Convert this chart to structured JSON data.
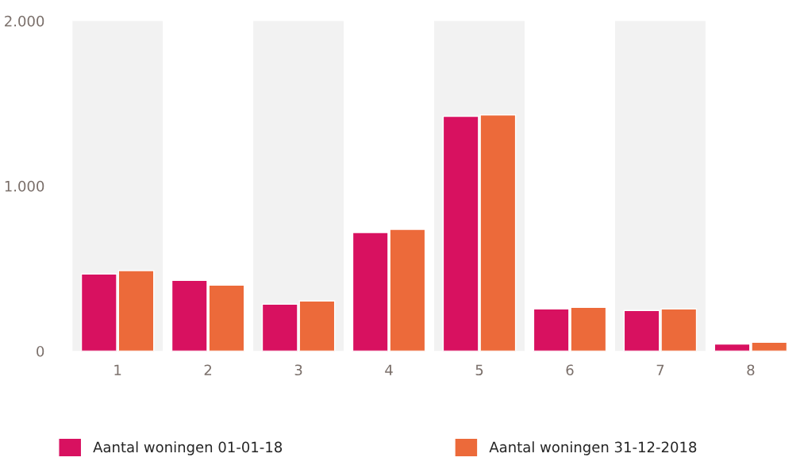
{
  "chart_data": {
    "type": "bar",
    "categories": [
      "1",
      "2",
      "3",
      "4",
      "5",
      "6",
      "7",
      "8"
    ],
    "series": [
      {
        "name": "Aantal woningen 01-01-18",
        "color": "#d81160",
        "values": [
          467,
          429,
          284,
          718,
          1422,
          255,
          246,
          43
        ]
      },
      {
        "name": "Aantal woningen 31-12-2018",
        "color": "#ec6a3a",
        "values": [
          487,
          400,
          304,
          737,
          1431,
          265,
          255,
          53
        ]
      }
    ],
    "ylim": [
      0,
      2000
    ],
    "yticks": [
      0,
      {
        "value": 1000,
        "label": "1.000"
      },
      {
        "value": 2000,
        "label": "2.000"
      }
    ],
    "bands": [
      {
        "axis": "x",
        "from": "1",
        "to": "1",
        "color": "#f2f2f2"
      },
      {
        "axis": "x",
        "from": "3",
        "to": "3",
        "color": "#f2f2f2"
      },
      {
        "axis": "x",
        "from": "5",
        "to": "5",
        "color": "#f2f2f2"
      },
      {
        "axis": "x",
        "from": "7",
        "to": "7",
        "color": "#f2f2f2"
      }
    ],
    "grid": false,
    "legend": "bottom"
  }
}
